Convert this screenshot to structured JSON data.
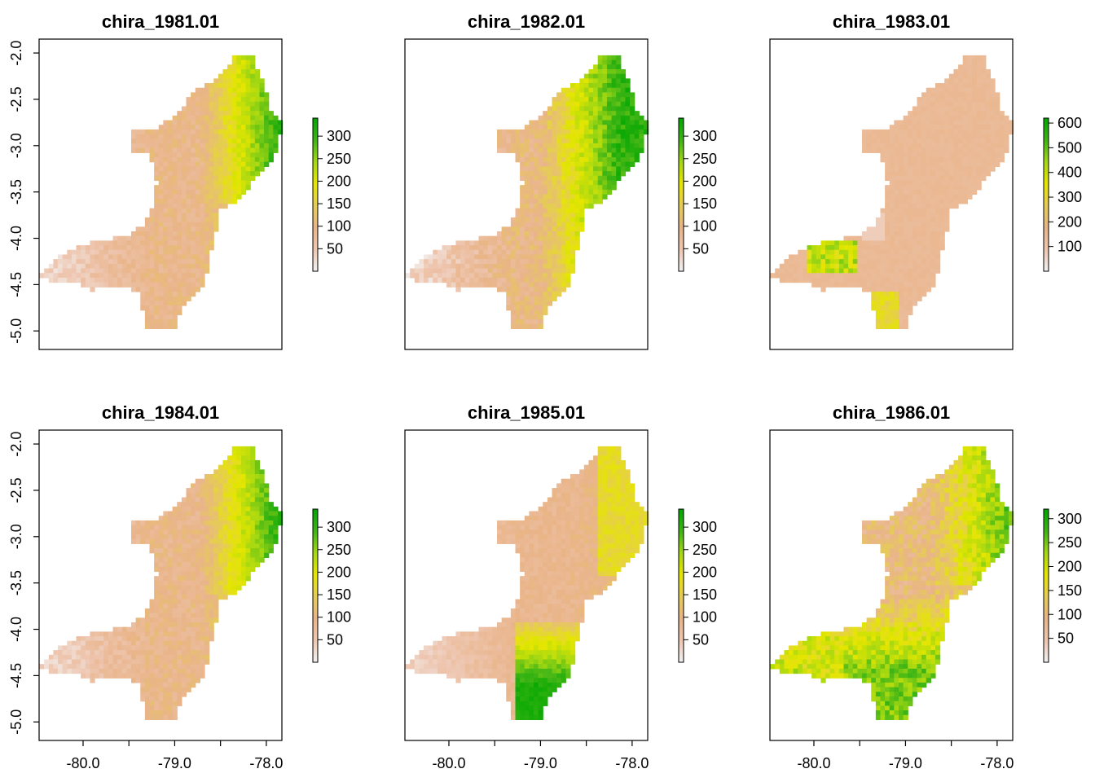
{
  "chart_data": [
    {
      "type": "heatmap",
      "title": "chira_1981.01",
      "legend_ticks": [
        "50",
        "100",
        "150",
        "200",
        "250",
        "300"
      ],
      "legend_range": [
        0,
        340
      ],
      "pattern": "east",
      "show_x_axis": false,
      "show_y_axis": true
    },
    {
      "type": "heatmap",
      "title": "chira_1982.01",
      "legend_ticks": [
        "50",
        "100",
        "150",
        "200",
        "250",
        "300"
      ],
      "legend_range": [
        0,
        340
      ],
      "pattern": "east_strong",
      "show_x_axis": false,
      "show_y_axis": false
    },
    {
      "type": "heatmap",
      "title": "chira_1983.01",
      "legend_ticks": [
        "100",
        "200",
        "300",
        "400",
        "500",
        "600"
      ],
      "legend_range": [
        0,
        620
      ],
      "pattern": "flat",
      "show_x_axis": false,
      "show_y_axis": false
    },
    {
      "type": "heatmap",
      "title": "chira_1984.01",
      "legend_ticks": [
        "50",
        "100",
        "150",
        "200",
        "250",
        "300"
      ],
      "legend_range": [
        0,
        340
      ],
      "pattern": "east",
      "show_x_axis": true,
      "show_y_axis": true
    },
    {
      "type": "heatmap",
      "title": "chira_1985.01",
      "legend_ticks": [
        "50",
        "100",
        "150",
        "200",
        "250",
        "300"
      ],
      "legend_range": [
        0,
        340
      ],
      "pattern": "south",
      "show_x_axis": true,
      "show_y_axis": false
    },
    {
      "type": "heatmap",
      "title": "chira_1986.01",
      "legend_ticks": [
        "50",
        "100",
        "150",
        "200",
        "250",
        "300"
      ],
      "legend_range": [
        0,
        320
      ],
      "pattern": "wet",
      "show_x_axis": true,
      "show_y_axis": false
    }
  ],
  "axes": {
    "x_ticks": [
      "-80.0",
      "-79.0",
      "-78.0"
    ],
    "x_values": [
      -80.0,
      -79.0,
      -78.0
    ],
    "x_minor": [
      -79.5,
      -78.5
    ],
    "xlim": [
      -80.48,
      -77.83
    ],
    "y_ticks": [
      "-2.0",
      "-2.5",
      "-3.0",
      "-3.5",
      "-4.0",
      "-4.5",
      "-5.0"
    ],
    "y_values": [
      -2.0,
      -2.5,
      -3.0,
      -3.5,
      -4.0,
      -4.5,
      -5.0
    ],
    "ylim": [
      -5.2,
      -1.85
    ]
  },
  "colors": {
    "ramp": [
      "#f2f2f2",
      "#eec6b0",
      "#e9b489",
      "#e6cc55",
      "#e5e600",
      "#a6d812",
      "#3eb515",
      "#00a600"
    ]
  }
}
